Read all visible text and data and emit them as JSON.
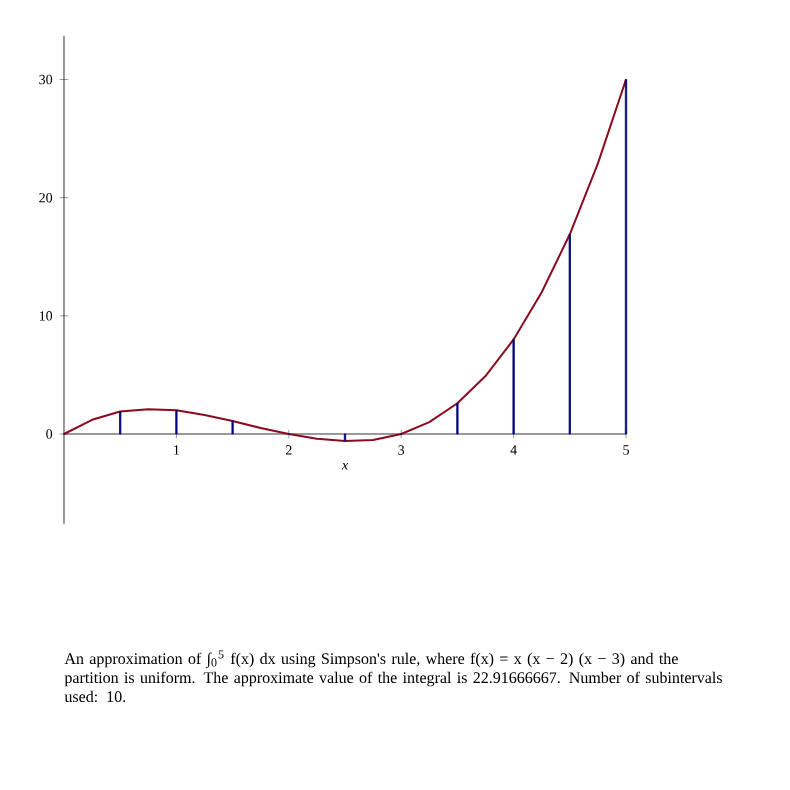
{
  "chart_data": {
    "type": "line",
    "xlabel": "x",
    "xlim": [
      0,
      5
    ],
    "ylim": [
      -7.6,
      33.7
    ],
    "xticks": [
      1,
      2,
      3,
      4,
      5
    ],
    "yticks": [
      0,
      10,
      20,
      30
    ],
    "series": [
      {
        "color": "#8b0a1e",
        "x": [
          0,
          0.25,
          0.5,
          0.75,
          1,
          1.25,
          1.5,
          1.75,
          2,
          2.25,
          2.5,
          2.75,
          3,
          3.25,
          3.5,
          3.75,
          4,
          4.25,
          4.5,
          4.75,
          5
        ],
        "values": [
          0,
          1.2,
          1.9,
          2.1,
          2,
          1.6,
          1.1,
          0.5,
          0,
          -0.4,
          -0.6,
          -0.5,
          0,
          1,
          2.6,
          4.9,
          8,
          12,
          16.9,
          22.9,
          30
        ]
      },
      {
        "type": "bar",
        "color": "#000080",
        "x": [
          0,
          0.5,
          1,
          1.5,
          2,
          2.5,
          3,
          3.5,
          4,
          4.5,
          5
        ],
        "values": [
          0,
          1.9,
          2,
          1.1,
          0,
          -0.6,
          0,
          2.6,
          8,
          16.9,
          30
        ]
      }
    ],
    "annotations": [
      "An approximation of ∫$_{0}$$^{5}$ f(x) dx using Simpson's rule, where f(x) = x (x − 2) (x − 3) and the partition is uniform. The approximate value of the integral is 22.91666667. Number of subintervals used: 10."
    ]
  }
}
